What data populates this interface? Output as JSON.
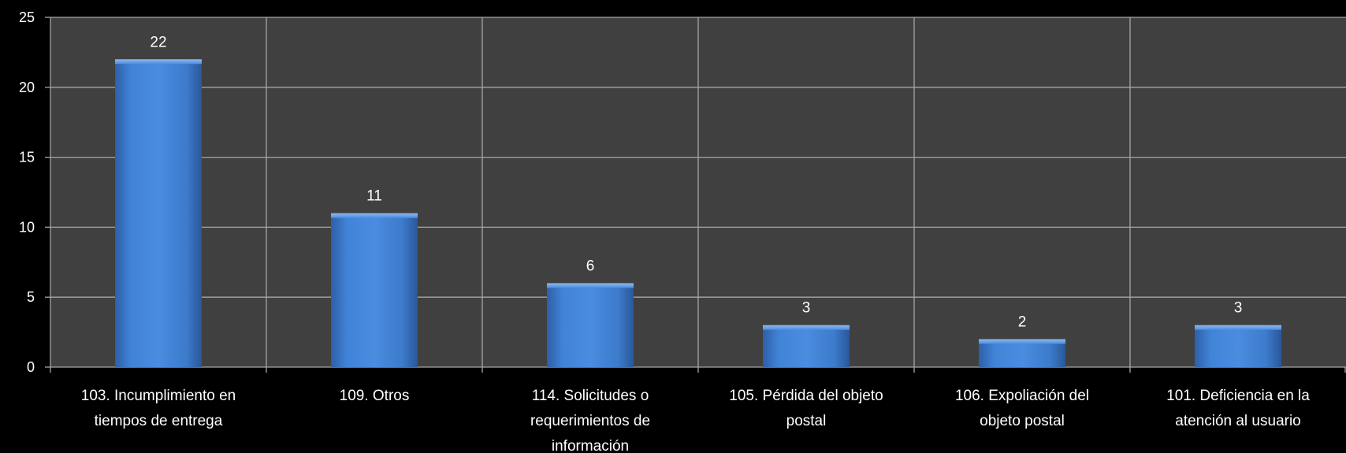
{
  "chart_data": {
    "type": "bar",
    "title": "",
    "xlabel": "",
    "ylabel": "",
    "ylim": [
      0,
      25
    ],
    "yticks": [
      0,
      5,
      10,
      15,
      20,
      25
    ],
    "grid": true,
    "legend": "none",
    "categories": [
      [
        "103. Incumplimiento en",
        "tiempos de entrega"
      ],
      [
        "109. Otros"
      ],
      [
        "114. Solicitudes o",
        "requerimientos de",
        "información"
      ],
      [
        "105. Pérdida del objeto",
        "postal"
      ],
      [
        "106. Expoliación del",
        "objeto postal"
      ],
      [
        "101. Deficiencia en la",
        "atención al usuario"
      ]
    ],
    "values": [
      22,
      11,
      6,
      3,
      2,
      3
    ],
    "data_labels": [
      "22",
      "11",
      "6",
      "3",
      "2",
      "3"
    ],
    "colors": {
      "background": "#000000",
      "plot_area": "#404040",
      "gridline": "#a6a6a6",
      "bar": "#3f7fd1",
      "text": "#ffffff"
    }
  }
}
